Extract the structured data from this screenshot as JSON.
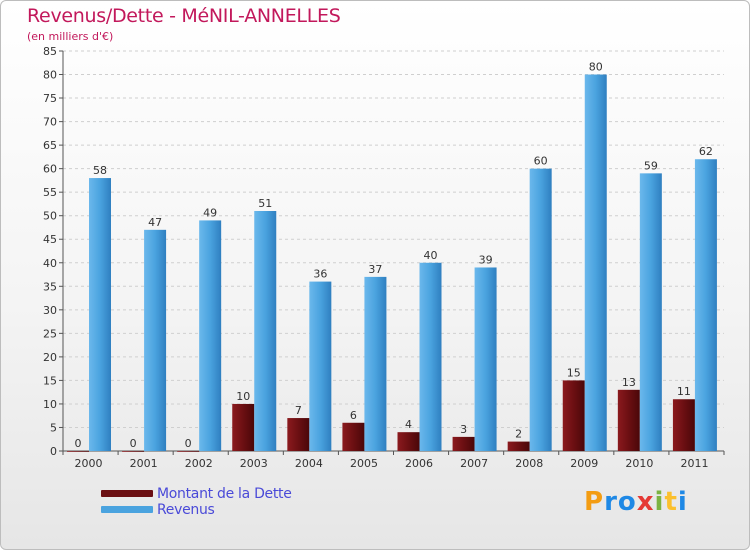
{
  "header": {
    "title": "Revenus/Dette - MéNIL-ANNELLES",
    "subtitle": "(en milliers d'€)"
  },
  "legend": {
    "items": [
      {
        "label": "Montant de la Dette",
        "color": "#6b0f12"
      },
      {
        "label": "Revenus",
        "color": "#4aa3df"
      }
    ]
  },
  "logo": {
    "text": "Proxiti",
    "letters": [
      "P",
      "r",
      "o",
      "x",
      "i",
      "t",
      "i"
    ],
    "colors": [
      "#f39c12",
      "#1e88e5",
      "#1e88e5",
      "#e53935",
      "#7cb342",
      "#fbc02d",
      "#1e88e5"
    ]
  },
  "chart_data": {
    "type": "bar",
    "categories": [
      "2000",
      "2001",
      "2002",
      "2003",
      "2004",
      "2005",
      "2006",
      "2007",
      "2008",
      "2009",
      "2010",
      "2011"
    ],
    "series": [
      {
        "name": "Montant de la Dette",
        "color": "#6b0f12",
        "values": [
          0,
          0,
          0,
          10,
          7,
          6,
          4,
          3,
          2,
          15,
          13,
          11
        ]
      },
      {
        "name": "Revenus",
        "color": "#4aa3df",
        "values": [
          58,
          47,
          49,
          51,
          36,
          37,
          40,
          39,
          60,
          80,
          59,
          62
        ]
      }
    ],
    "ylim": [
      0,
      85
    ],
    "yticks": [
      0,
      5,
      10,
      15,
      20,
      25,
      30,
      35,
      40,
      45,
      50,
      55,
      60,
      65,
      70,
      75,
      80,
      85
    ],
    "title": "Revenus/Dette - MéNIL-ANNELLES",
    "subtitle": "(en milliers d'€)",
    "xlabel": "",
    "ylabel": "",
    "grid": true
  }
}
